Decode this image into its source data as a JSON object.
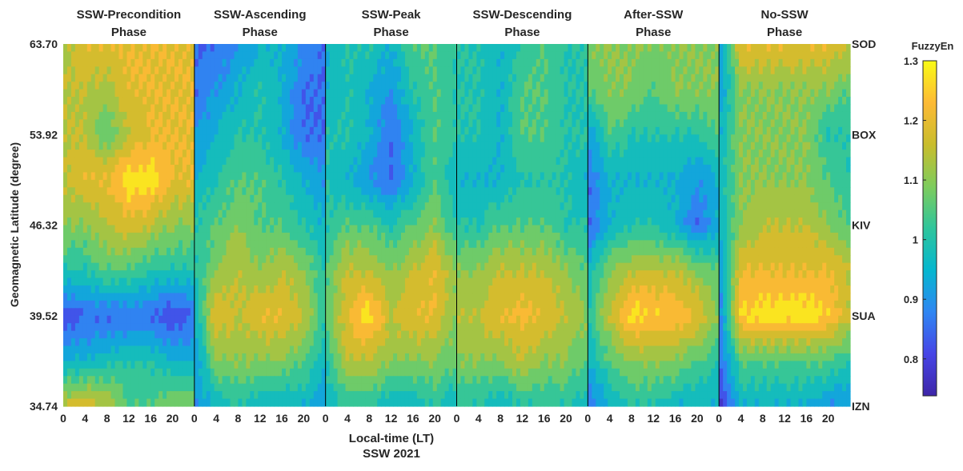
{
  "chart_data": {
    "type": "heatmap",
    "title": "SSW 2021",
    "xlabel": "Local-time (LT)",
    "ylabel": "Geomagnetic Latitude (degree)",
    "colorbar": {
      "label": "FuzzyEn",
      "range": [
        0.738,
        1.3
      ],
      "ticks": [
        "0.8",
        "0.9",
        "1",
        "1.1",
        "1.2",
        "1.3"
      ],
      "colormap": [
        "#3e26a8",
        "#4745e6",
        "#2f86f2",
        "#05b7cf",
        "#2fc59c",
        "#7ecc5c",
        "#c9bd2c",
        "#fdba35",
        "#f9fb15"
      ]
    },
    "y_ticks": [
      "63.70",
      "53.92",
      "46.32",
      "39.52",
      "34.74"
    ],
    "stations": [
      "SOD",
      "BOX",
      "KIV",
      "SUA",
      "IZN"
    ],
    "x_ticks": [
      "0",
      "4",
      "8",
      "12",
      "16",
      "20"
    ],
    "lt_grid": [
      0,
      4,
      8,
      12,
      16,
      20,
      24
    ],
    "lat_grid": [
      63.7,
      58.8,
      53.92,
      50.1,
      46.32,
      42.9,
      39.52,
      37.1,
      34.74
    ],
    "contour_step": 0.05,
    "panels": [
      {
        "title1": "SSW-Precondition",
        "title2": "Phase",
        "values": [
          [
            1.12,
            1.2,
            1.2,
            1.2,
            1.2,
            1.2,
            1.2
          ],
          [
            1.15,
            1.15,
            1.12,
            1.2,
            1.2,
            1.2,
            1.2
          ],
          [
            1.15,
            1.15,
            1.05,
            1.15,
            1.2,
            1.2,
            1.2
          ],
          [
            1.15,
            1.2,
            1.2,
            1.28,
            1.28,
            1.2,
            1.2
          ],
          [
            1.1,
            1.1,
            1.15,
            1.18,
            1.15,
            1.1,
            1.1
          ],
          [
            1.0,
            1.0,
            1.05,
            1.05,
            1.0,
            1.0,
            1.0
          ],
          [
            0.8,
            0.85,
            0.85,
            0.85,
            0.85,
            0.8,
            0.85
          ],
          [
            0.95,
            0.95,
            0.98,
            1.0,
            1.0,
            0.95,
            0.95
          ],
          [
            1.15,
            1.2,
            1.15,
            1.05,
            1.05,
            1.1,
            1.1
          ]
        ]
      },
      {
        "title1": "SSW-Ascending",
        "title2": "Phase",
        "values": [
          [
            0.85,
            0.85,
            0.9,
            0.95,
            0.95,
            0.9,
            0.85
          ],
          [
            0.85,
            0.9,
            0.95,
            1.0,
            0.95,
            0.85,
            0.85
          ],
          [
            0.9,
            0.95,
            1.0,
            1.0,
            0.95,
            0.85,
            0.85
          ],
          [
            0.95,
            1.0,
            1.05,
            1.05,
            1.0,
            0.95,
            0.9
          ],
          [
            1.0,
            1.05,
            1.1,
            1.05,
            1.05,
            1.0,
            0.95
          ],
          [
            1.0,
            1.1,
            1.15,
            1.1,
            1.15,
            1.1,
            1.0
          ],
          [
            0.95,
            1.2,
            1.15,
            1.2,
            1.2,
            1.15,
            1.0
          ],
          [
            0.9,
            1.1,
            1.1,
            1.1,
            1.1,
            1.05,
            0.95
          ],
          [
            0.9,
            0.95,
            1.0,
            0.95,
            0.95,
            0.95,
            0.9
          ]
        ]
      },
      {
        "title1": "SSW-Peak",
        "title2": "Phase",
        "values": [
          [
            0.95,
            1.0,
            1.0,
            0.95,
            1.05,
            1.05,
            1.0
          ],
          [
            0.95,
            1.0,
            0.95,
            0.9,
            1.0,
            1.05,
            1.0
          ],
          [
            1.0,
            1.0,
            0.95,
            0.85,
            0.95,
            1.05,
            1.0
          ],
          [
            1.0,
            0.95,
            0.9,
            0.85,
            0.95,
            1.05,
            0.95
          ],
          [
            1.0,
            1.05,
            1.05,
            1.0,
            1.05,
            1.1,
            1.0
          ],
          [
            1.05,
            1.15,
            1.15,
            1.1,
            1.15,
            1.2,
            1.1
          ],
          [
            1.05,
            1.2,
            1.28,
            1.15,
            1.2,
            1.2,
            1.1
          ],
          [
            1.0,
            1.15,
            1.15,
            1.1,
            1.1,
            1.1,
            1.05
          ],
          [
            0.95,
            1.0,
            1.0,
            0.95,
            0.95,
            1.0,
            0.95
          ]
        ]
      },
      {
        "title1": "SSW-Descending",
        "title2": "Phase",
        "values": [
          [
            1.0,
            1.0,
            0.95,
            1.0,
            1.05,
            1.0,
            1.0
          ],
          [
            1.0,
            1.0,
            0.95,
            1.05,
            1.05,
            1.0,
            1.0
          ],
          [
            1.0,
            1.0,
            0.95,
            1.05,
            1.05,
            1.0,
            1.0
          ],
          [
            0.95,
            0.95,
            0.95,
            1.0,
            1.0,
            1.0,
            0.95
          ],
          [
            1.0,
            1.0,
            1.05,
            1.05,
            1.05,
            1.0,
            1.0
          ],
          [
            1.1,
            1.1,
            1.15,
            1.15,
            1.15,
            1.1,
            1.05
          ],
          [
            1.15,
            1.15,
            1.2,
            1.22,
            1.2,
            1.15,
            1.1
          ],
          [
            1.1,
            1.1,
            1.1,
            1.15,
            1.1,
            1.1,
            1.05
          ],
          [
            1.0,
            1.0,
            0.95,
            1.0,
            1.0,
            1.0,
            0.95
          ]
        ]
      },
      {
        "title1": "After-SSW",
        "title2": "Phase",
        "values": [
          [
            1.1,
            1.1,
            1.1,
            1.1,
            1.1,
            1.1,
            1.1
          ],
          [
            1.05,
            1.1,
            1.1,
            1.05,
            1.1,
            1.1,
            1.1
          ],
          [
            0.9,
            1.05,
            1.0,
            1.0,
            1.0,
            1.0,
            1.05
          ],
          [
            0.85,
            0.95,
            0.95,
            0.95,
            0.95,
            0.9,
            0.95
          ],
          [
            0.85,
            0.95,
            1.0,
            1.0,
            0.95,
            0.85,
            0.95
          ],
          [
            0.95,
            1.1,
            1.15,
            1.15,
            1.15,
            1.1,
            1.05
          ],
          [
            1.0,
            1.15,
            1.28,
            1.25,
            1.25,
            1.2,
            1.1
          ],
          [
            0.95,
            1.05,
            1.1,
            1.1,
            1.1,
            1.05,
            1.0
          ],
          [
            0.85,
            0.95,
            1.0,
            1.0,
            0.95,
            0.95,
            0.95
          ]
        ]
      },
      {
        "title1": "No-SSW",
        "title2": "Phase",
        "values": [
          [
            0.9,
            1.2,
            1.2,
            1.2,
            1.2,
            1.2,
            1.15
          ],
          [
            0.9,
            1.1,
            1.1,
            1.1,
            1.1,
            1.1,
            1.05
          ],
          [
            0.95,
            1.1,
            1.1,
            1.1,
            1.1,
            1.0,
            1.0
          ],
          [
            0.95,
            1.1,
            1.1,
            1.1,
            1.1,
            1.05,
            1.0
          ],
          [
            0.95,
            1.1,
            1.15,
            1.15,
            1.15,
            1.1,
            1.05
          ],
          [
            0.9,
            1.2,
            1.2,
            1.2,
            1.2,
            1.2,
            1.15
          ],
          [
            0.85,
            1.25,
            1.28,
            1.28,
            1.28,
            1.25,
            1.15
          ],
          [
            0.85,
            1.05,
            1.05,
            1.05,
            1.05,
            1.05,
            1.0
          ],
          [
            0.75,
            0.95,
            0.95,
            0.95,
            0.95,
            0.9,
            0.9
          ]
        ]
      }
    ]
  }
}
